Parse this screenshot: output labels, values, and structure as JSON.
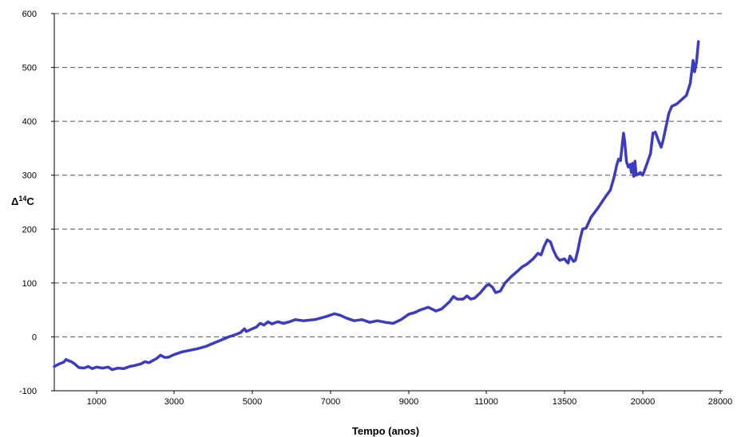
{
  "chart_data": {
    "type": "line",
    "title": "",
    "xlabel": "Tempo (anos)",
    "ylabel_base": "Δ",
    "ylabel_sup": "14",
    "ylabel_tail": "C",
    "ylim": [
      -100,
      600
    ],
    "yticks": [
      -100,
      0,
      100,
      200,
      300,
      400,
      500,
      600
    ],
    "ytick_labels": [
      "-100",
      "0",
      "100",
      "200",
      "300",
      "400",
      "500",
      "600"
    ],
    "xticks": [
      1000,
      3000,
      5000,
      7000,
      9000,
      11000,
      13500,
      20000,
      28000
    ],
    "xtick_labels": [
      "1000",
      "3000",
      "5000",
      "7000",
      "9000",
      "11000",
      "13500",
      "20000",
      "28000"
    ],
    "grid": "horizontal dashed",
    "legend": "none",
    "series": [
      {
        "color": "#3b3bc4",
        "points": [
          [
            0,
            -55
          ],
          [
            120,
            -50
          ],
          [
            220,
            -47
          ],
          [
            280,
            -42
          ],
          [
            330,
            -44
          ],
          [
            400,
            -46
          ],
          [
            480,
            -50
          ],
          [
            580,
            -57
          ],
          [
            700,
            -58
          ],
          [
            800,
            -55
          ],
          [
            900,
            -59
          ],
          [
            1000,
            -56
          ],
          [
            1150,
            -58
          ],
          [
            1300,
            -56
          ],
          [
            1400,
            -61
          ],
          [
            1550,
            -58
          ],
          [
            1700,
            -59
          ],
          [
            1850,
            -55
          ],
          [
            2000,
            -53
          ],
          [
            2150,
            -50
          ],
          [
            2250,
            -46
          ],
          [
            2350,
            -48
          ],
          [
            2450,
            -44
          ],
          [
            2550,
            -40
          ],
          [
            2650,
            -34
          ],
          [
            2750,
            -38
          ],
          [
            2850,
            -38
          ],
          [
            3000,
            -33
          ],
          [
            3200,
            -28
          ],
          [
            3400,
            -25
          ],
          [
            3600,
            -22
          ],
          [
            3800,
            -18
          ],
          [
            4000,
            -12
          ],
          [
            4200,
            -6
          ],
          [
            4400,
            0
          ],
          [
            4600,
            5
          ],
          [
            4700,
            8
          ],
          [
            4800,
            15
          ],
          [
            4850,
            10
          ],
          [
            5000,
            15
          ],
          [
            5100,
            18
          ],
          [
            5200,
            25
          ],
          [
            5300,
            22
          ],
          [
            5400,
            28
          ],
          [
            5500,
            24
          ],
          [
            5650,
            28
          ],
          [
            5800,
            25
          ],
          [
            5950,
            28
          ],
          [
            6100,
            32
          ],
          [
            6300,
            30
          ],
          [
            6600,
            32
          ],
          [
            6900,
            38
          ],
          [
            7100,
            43
          ],
          [
            7250,
            40
          ],
          [
            7400,
            35
          ],
          [
            7600,
            30
          ],
          [
            7800,
            32
          ],
          [
            8000,
            27
          ],
          [
            8200,
            30
          ],
          [
            8400,
            27
          ],
          [
            8600,
            25
          ],
          [
            8800,
            32
          ],
          [
            9000,
            42
          ],
          [
            9150,
            45
          ],
          [
            9300,
            50
          ],
          [
            9500,
            55
          ],
          [
            9700,
            48
          ],
          [
            9850,
            52
          ],
          [
            10050,
            65
          ],
          [
            10150,
            75
          ],
          [
            10250,
            70
          ],
          [
            10400,
            70
          ],
          [
            10500,
            76
          ],
          [
            10600,
            70
          ],
          [
            10700,
            72
          ],
          [
            10850,
            82
          ],
          [
            11000,
            95
          ],
          [
            11100,
            97
          ],
          [
            11200,
            92
          ],
          [
            11300,
            82
          ],
          [
            11450,
            85
          ],
          [
            11600,
            100
          ],
          [
            11800,
            112
          ],
          [
            12000,
            122
          ],
          [
            12150,
            130
          ],
          [
            12300,
            135
          ],
          [
            12500,
            145
          ],
          [
            12650,
            155
          ],
          [
            12750,
            152
          ],
          [
            12850,
            168
          ],
          [
            12950,
            180
          ],
          [
            13050,
            176
          ],
          [
            13150,
            160
          ],
          [
            13250,
            148
          ],
          [
            13350,
            142
          ],
          [
            13500,
            145
          ],
          [
            13650,
            140
          ],
          [
            13800,
            137
          ],
          [
            13950,
            150
          ],
          [
            14100,
            145
          ],
          [
            14250,
            140
          ],
          [
            14400,
            142
          ],
          [
            14600,
            160
          ],
          [
            14800,
            182
          ],
          [
            15000,
            200
          ],
          [
            15300,
            202
          ],
          [
            15700,
            222
          ],
          [
            16300,
            240
          ],
          [
            16900,
            260
          ],
          [
            17300,
            272
          ],
          [
            17600,
            295
          ],
          [
            17850,
            320
          ],
          [
            18000,
            330
          ],
          [
            18150,
            327
          ],
          [
            18300,
            358
          ],
          [
            18400,
            378
          ],
          [
            18500,
            362
          ],
          [
            18650,
            325
          ],
          [
            18800,
            315
          ],
          [
            18950,
            320
          ],
          [
            19050,
            305
          ],
          [
            19150,
            322
          ],
          [
            19250,
            298
          ],
          [
            19350,
            326
          ],
          [
            19450,
            300
          ],
          [
            19600,
            302
          ],
          [
            19800,
            305
          ],
          [
            20000,
            300
          ],
          [
            20400,
            320
          ],
          [
            20800,
            340
          ],
          [
            21050,
            378
          ],
          [
            21300,
            380
          ],
          [
            21600,
            365
          ],
          [
            21900,
            352
          ],
          [
            22100,
            365
          ],
          [
            22400,
            390
          ],
          [
            22700,
            415
          ],
          [
            23000,
            428
          ],
          [
            23500,
            432
          ],
          [
            24000,
            440
          ],
          [
            24500,
            448
          ],
          [
            24900,
            470
          ],
          [
            25200,
            513
          ],
          [
            25350,
            492
          ],
          [
            25550,
            510
          ],
          [
            25750,
            548
          ]
        ]
      }
    ]
  }
}
